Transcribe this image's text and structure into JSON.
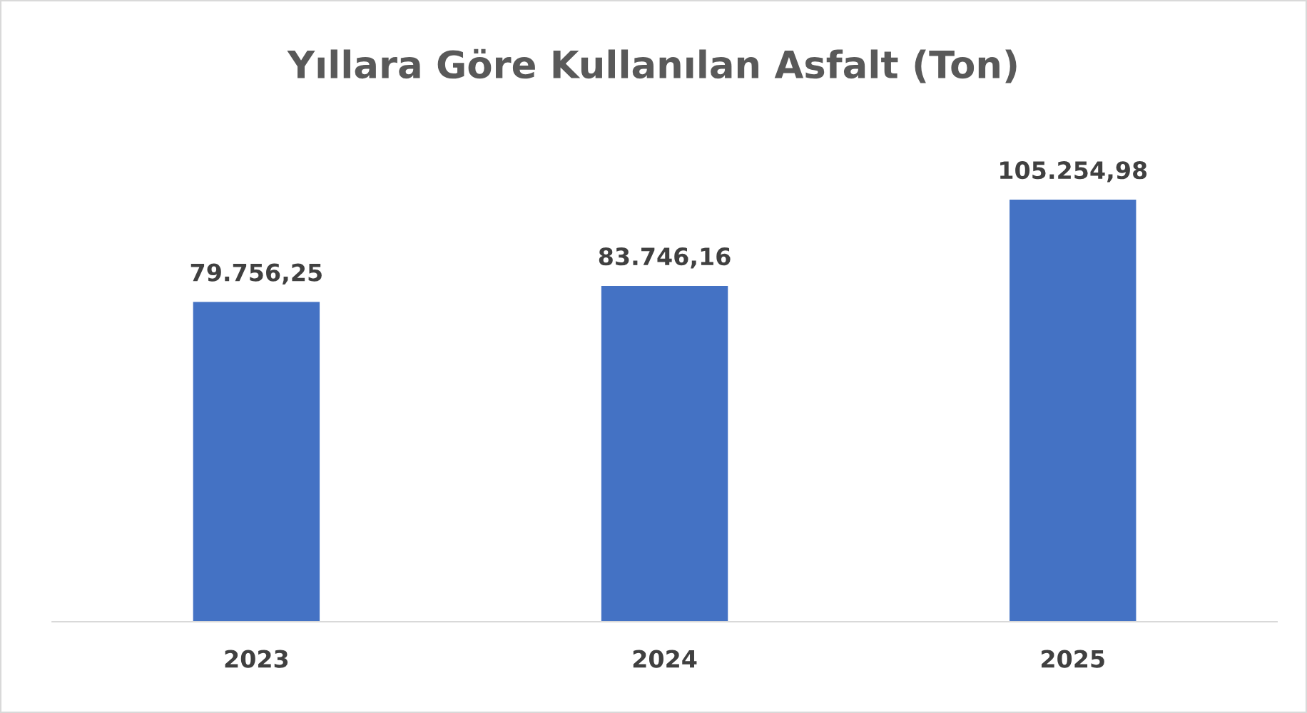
{
  "chart_data": {
    "type": "bar",
    "title": "Yıllara Göre Kullanılan Asfalt (Ton)",
    "categories": [
      "2023",
      "2024",
      "2025"
    ],
    "values": [
      79756.25,
      83746.16,
      105254.98
    ],
    "value_labels": [
      "79.756,25",
      "83.746,16",
      "105.254,98"
    ],
    "color": "#4472c4"
  }
}
